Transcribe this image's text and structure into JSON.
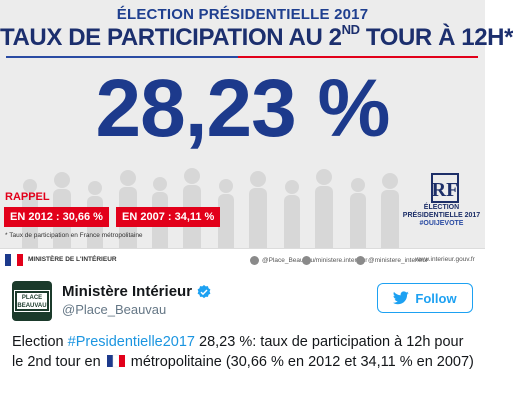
{
  "infographic": {
    "kicker": "ÉLECTION PRÉSIDENTIELLE 2017",
    "headline_before": "TAUX DE PARTICIPATION AU 2",
    "headline_sup": "ND",
    "headline_after": " TOUR À 12H",
    "headline_mark": "*",
    "big_value": "28,23 %",
    "rappel_label": "RAPPEL",
    "history": [
      {
        "label": "EN 2012 : 30,66 %"
      },
      {
        "label": "EN 2007 : 34,11 %"
      }
    ],
    "footnote": "* Taux de participation en France métropolitaine",
    "logo_lines": [
      "ÉLECTION",
      "PRÉSIDENTIELLE 2017",
      "#OUIJEVOTE"
    ],
    "logo_letters": "RF",
    "footer": {
      "ministry": "MINISTÈRE DE L'INTÉRIEUR",
      "social": [
        "@Place_Beauvau",
        "/ministere.interieur",
        "@ministere_interieur",
        "www.interieur.gouv.fr"
      ]
    },
    "colors": {
      "blue": "#1d3a8c",
      "red": "#e2001a",
      "background": "#ececec"
    }
  },
  "tweet": {
    "author_name": "Ministère Intérieur",
    "handle": "@Place_Beauvau",
    "avatar_sign": [
      "PLACE",
      "BEAUVAU"
    ],
    "follow_label": "Follow",
    "text_1": "Election ",
    "hashtag": "#Presidentielle2017",
    "text_2": " 28,23 %: taux de participation à 12h pour le 2nd tour en ",
    "text_3": " métropolitaine (30,66 % en 2012 et 34,11 % en 2007)",
    "icons": {
      "verified": "verified-badge-icon",
      "follow": "twitter-bird-icon",
      "flag": "france-flag-icon"
    },
    "colors": {
      "link": "#1b95e0",
      "follow": "#1da1f2",
      "muted": "#657786"
    }
  }
}
